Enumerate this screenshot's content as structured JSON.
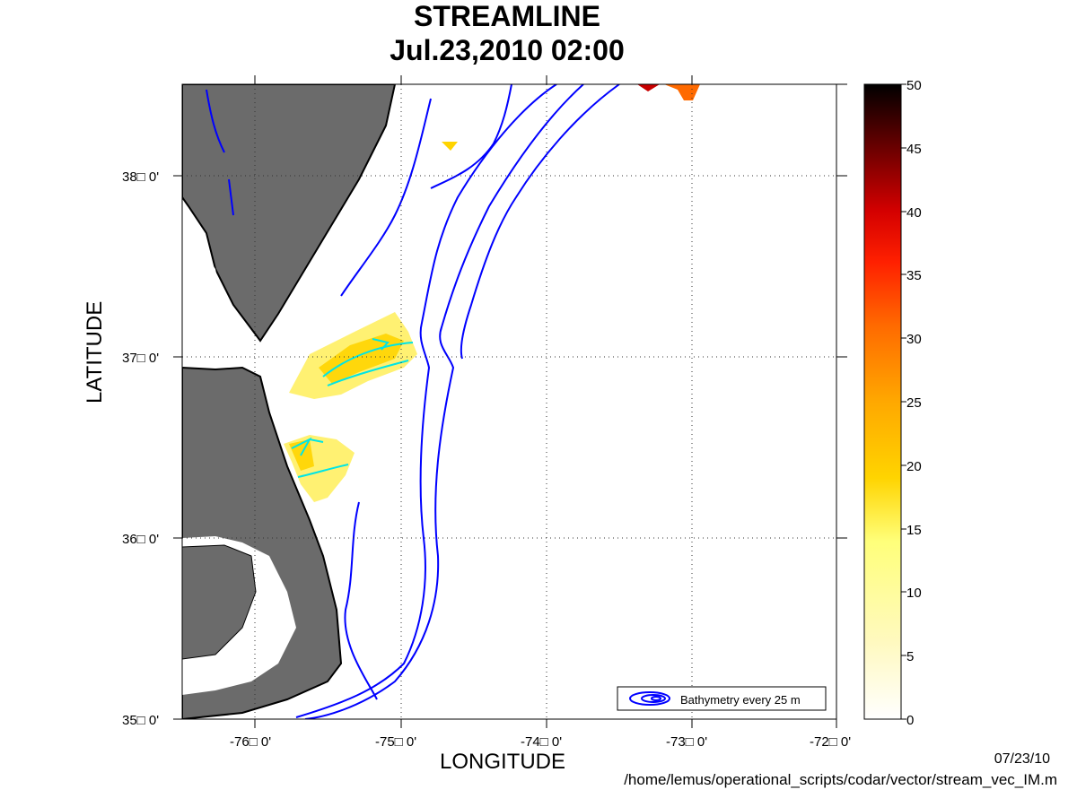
{
  "title": "STREAMLINE",
  "subtitle": "Jul.23,2010 02:00",
  "xlabel": "LONGITUDE",
  "ylabel": "LATITUDE",
  "date_stamp": "07/23/10",
  "script_path": "/home/lemus/operational_scripts/codar/vector/stream_vec_IM.m",
  "legend_text": "Bathymetry every 25 m",
  "x_ticks": [
    "-76□ 0'",
    "-75□ 0'",
    "-74□ 0'",
    "-73□ 0'",
    "-72□ 0'"
  ],
  "y_ticks": [
    "35□ 0'",
    "36□ 0'",
    "37□ 0'",
    "38□ 0'"
  ],
  "colorbar_ticks": [
    "0",
    "5",
    "10",
    "15",
    "20",
    "25",
    "30",
    "35",
    "40",
    "45",
    "50"
  ],
  "colors": {
    "land": "#6b6b6b",
    "bathymetry": "#0000ff",
    "streamline": "#00e5e5",
    "speed_low": "#fff59a",
    "speed_high": "#000000"
  },
  "map": {
    "lon_range": [
      -76.5,
      -72
    ],
    "lat_range": [
      35,
      38.5
    ],
    "grid": "dotted",
    "colorbar_units_range": [
      0,
      50
    ]
  }
}
